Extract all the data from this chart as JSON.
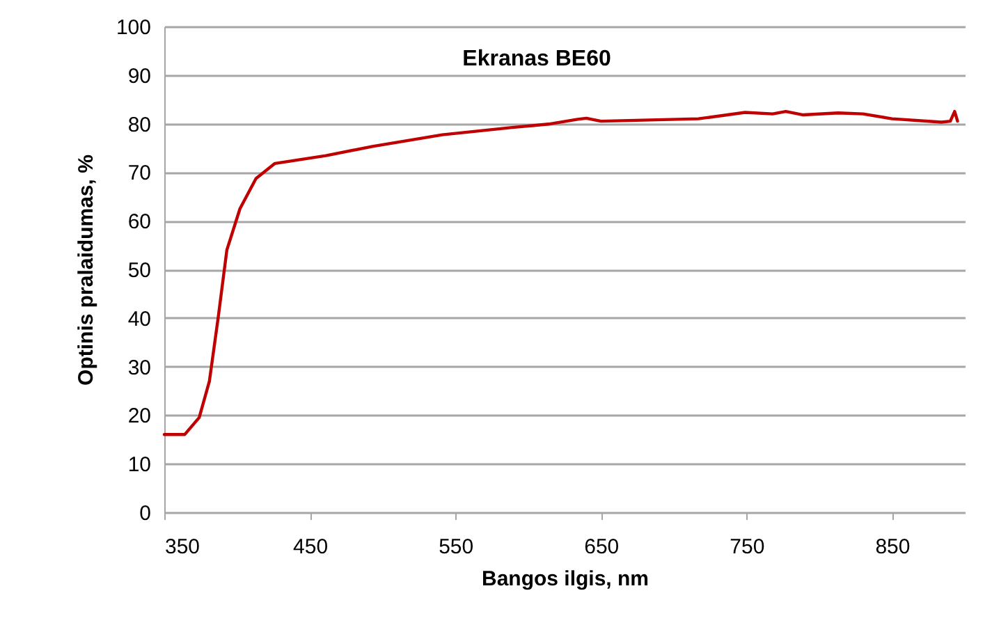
{
  "chart_data": {
    "type": "line",
    "title": "Ekranas BE60",
    "xlabel": "Bangos ilgis, nm",
    "ylabel": "Optinis pralaidumas, %",
    "xlim": [
      350,
      900
    ],
    "xticks": [
      350,
      450,
      550,
      650,
      750,
      850
    ],
    "ylim": [
      0,
      100
    ],
    "yticks": [
      0,
      10,
      20,
      30,
      40,
      50,
      60,
      70,
      80,
      90,
      100
    ],
    "grid": "y",
    "series": [
      {
        "color": "#c00000",
        "x": [
          350,
          364,
          374,
          381,
          387,
          393,
          402,
          413,
          426,
          461,
          493,
          541,
          589,
          614,
          634,
          640,
          650,
          717,
          749,
          768,
          777,
          789,
          813,
          830,
          850,
          884,
          890,
          893,
          895
        ],
        "values": [
          16,
          16,
          19.5,
          27,
          40,
          54,
          62.5,
          68.7,
          71.8,
          73.4,
          75.3,
          77.7,
          79.2,
          79.9,
          80.9,
          81.1,
          80.5,
          81,
          82.3,
          82,
          82.5,
          81.8,
          82.2,
          82,
          81,
          80.3,
          80.5,
          82.5,
          80.5
        ]
      }
    ]
  }
}
